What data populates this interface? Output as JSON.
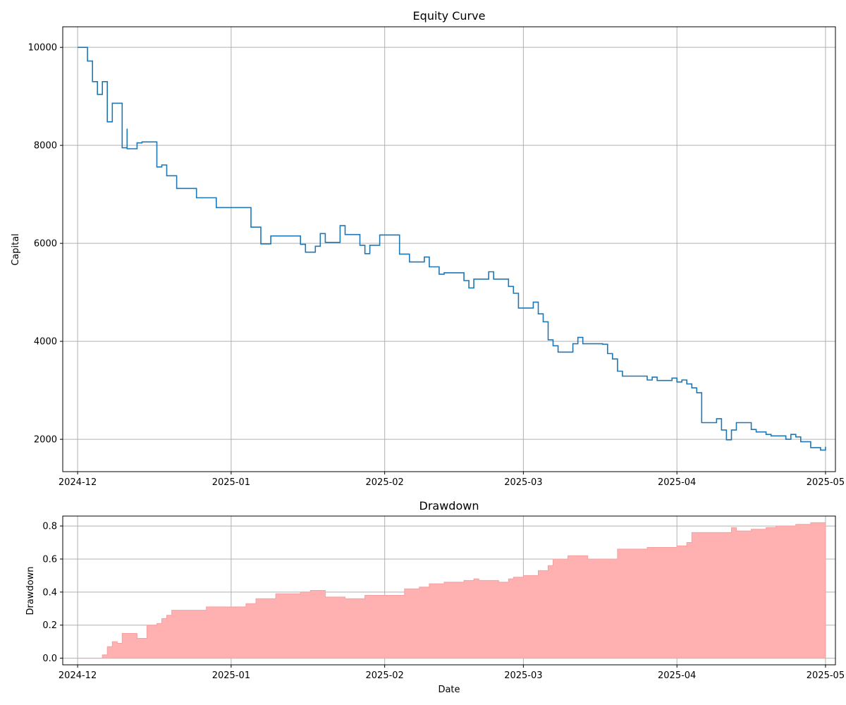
{
  "chart_data": [
    {
      "type": "line",
      "title": "Equity Curve",
      "xlabel": "",
      "ylabel": "Capital",
      "xlim": [
        "2024-11-28",
        "2025-05-03"
      ],
      "ylim": [
        1340,
        10420
      ],
      "x_ticks": [
        "2024-12",
        "2025-01",
        "2025-02",
        "2025-03",
        "2025-04",
        "2025-05"
      ],
      "y_ticks": [
        2000,
        4000,
        6000,
        8000,
        10000
      ],
      "y_tick_labels": [
        "2000",
        "4000",
        "6000",
        "8000",
        "10000"
      ],
      "grid": true,
      "step": true,
      "color": "#1f77b4",
      "series": [
        {
          "x": [
            "2024-12-01",
            "2024-12-03",
            "2024-12-04",
            "2024-12-05",
            "2024-12-06",
            "2024-12-07",
            "2024-12-07",
            "2024-12-08",
            "2024-12-08",
            "2024-12-10",
            "2024-12-10",
            "2024-12-11",
            "2024-12-11",
            "2024-12-13",
            "2024-12-13",
            "2024-12-14",
            "2024-12-17",
            "2024-12-17",
            "2024-12-18",
            "2024-12-19",
            "2024-12-20",
            "2024-12-21",
            "2024-12-23",
            "2024-12-25",
            "2024-12-29",
            "2025-01-02",
            "2025-01-05",
            "2025-01-06",
            "2025-01-07",
            "2025-01-09",
            "2025-01-15",
            "2025-01-16",
            "2025-01-18",
            "2025-01-19",
            "2025-01-20",
            "2025-01-23",
            "2025-01-24",
            "2025-01-26",
            "2025-01-27",
            "2025-01-28",
            "2025-01-29",
            "2025-01-31",
            "2025-02-02",
            "2025-02-04",
            "2025-02-05",
            "2025-02-06",
            "2025-02-09",
            "2025-02-10",
            "2025-02-11",
            "2025-02-12",
            "2025-02-13",
            "2025-02-17",
            "2025-02-18",
            "2025-02-19",
            "2025-02-20",
            "2025-02-22",
            "2025-02-23",
            "2025-02-24",
            "2025-02-26",
            "2025-02-27",
            "2025-02-28",
            "2025-03-03",
            "2025-03-04",
            "2025-03-05",
            "2025-03-06",
            "2025-03-07",
            "2025-03-08",
            "2025-03-09",
            "2025-03-11",
            "2025-03-12",
            "2025-03-13",
            "2025-03-14",
            "2025-03-17",
            "2025-03-18",
            "2025-03-19",
            "2025-03-20",
            "2025-03-21",
            "2025-03-25",
            "2025-03-26",
            "2025-03-27",
            "2025-03-28",
            "2025-03-31",
            "2025-04-01",
            "2025-04-02",
            "2025-04-03",
            "2025-04-04",
            "2025-04-05",
            "2025-04-06",
            "2025-04-08",
            "2025-04-09",
            "2025-04-10",
            "2025-04-11",
            "2025-04-12",
            "2025-04-13",
            "2025-04-14",
            "2025-04-16",
            "2025-04-17",
            "2025-04-18",
            "2025-04-19",
            "2025-04-20",
            "2025-04-23",
            "2025-04-24",
            "2025-04-25",
            "2025-04-26",
            "2025-04-28",
            "2025-04-29",
            "2025-04-30",
            "2025-05-01"
          ],
          "y": [
            10000,
            9720,
            9300,
            9040,
            9300,
            9000,
            8480,
            8480,
            8860,
            8620,
            7950,
            8340,
            7930,
            8050,
            8050,
            8070,
            7800,
            7560,
            7600,
            7380,
            7380,
            7120,
            7120,
            6930,
            6730,
            6730,
            6330,
            6330,
            5990,
            6150,
            5980,
            5820,
            5940,
            6200,
            6020,
            6360,
            6180,
            6180,
            5960,
            5790,
            5960,
            6170,
            6170,
            5780,
            5780,
            5620,
            5720,
            5520,
            5520,
            5370,
            5400,
            5240,
            5090,
            5270,
            5270,
            5420,
            5270,
            5270,
            5120,
            4980,
            4680,
            4800,
            4560,
            4400,
            4030,
            3910,
            3780,
            3780,
            3950,
            4080,
            3950,
            3950,
            3940,
            3750,
            3640,
            3390,
            3290,
            3290,
            3210,
            3270,
            3200,
            3250,
            3170,
            3210,
            3130,
            3050,
            2950,
            2340,
            2340,
            2420,
            2190,
            1990,
            2190,
            2340,
            2340,
            2200,
            2150,
            2150,
            2100,
            2070,
            2000,
            2100,
            2050,
            1950,
            1830,
            1830,
            1780,
            1850
          ]
        }
      ]
    },
    {
      "type": "area",
      "title": "Drawdown",
      "xlabel": "Date",
      "ylabel": "Drawdown",
      "xlim": [
        "2024-11-28",
        "2025-05-03"
      ],
      "ylim": [
        -0.04,
        0.86
      ],
      "x_ticks": [
        "2024-12",
        "2025-01",
        "2025-02",
        "2025-03",
        "2025-04",
        "2025-05"
      ],
      "y_ticks": [
        0,
        0.2,
        0.4,
        0.6,
        0.8
      ],
      "y_tick_labels": [
        "0.0",
        "0.2",
        "0.4",
        "0.6",
        "0.8"
      ],
      "grid": true,
      "step": true,
      "color": "#ffb1b1",
      "series": [
        {
          "x": [
            "2024-12-01",
            "2024-12-06",
            "2024-12-07",
            "2024-12-08",
            "2024-12-09",
            "2024-12-10",
            "2024-12-12",
            "2024-12-13",
            "2024-12-15",
            "2024-12-17",
            "2024-12-18",
            "2024-12-19",
            "2024-12-20",
            "2024-12-23",
            "2024-12-27",
            "2025-01-04",
            "2025-01-06",
            "2025-01-10",
            "2025-01-15",
            "2025-01-17",
            "2025-01-20",
            "2025-01-24",
            "2025-01-28",
            "2025-02-02",
            "2025-02-05",
            "2025-02-08",
            "2025-02-10",
            "2025-02-13",
            "2025-02-17",
            "2025-02-19",
            "2025-02-20",
            "2025-02-24",
            "2025-02-26",
            "2025-02-27",
            "2025-03-01",
            "2025-03-04",
            "2025-03-06",
            "2025-03-07",
            "2025-03-10",
            "2025-03-14",
            "2025-03-18",
            "2025-03-20",
            "2025-03-26",
            "2025-03-28",
            "2025-04-01",
            "2025-04-03",
            "2025-04-04",
            "2025-04-10",
            "2025-04-12",
            "2025-04-13",
            "2025-04-16",
            "2025-04-19",
            "2025-04-21",
            "2025-04-25",
            "2025-04-28",
            "2025-05-01"
          ],
          "y": [
            0.0,
            0.02,
            0.07,
            0.1,
            0.09,
            0.15,
            0.15,
            0.12,
            0.2,
            0.21,
            0.24,
            0.26,
            0.29,
            0.29,
            0.31,
            0.33,
            0.36,
            0.39,
            0.4,
            0.41,
            0.37,
            0.36,
            0.38,
            0.38,
            0.42,
            0.43,
            0.45,
            0.46,
            0.47,
            0.48,
            0.47,
            0.46,
            0.48,
            0.49,
            0.5,
            0.53,
            0.56,
            0.6,
            0.62,
            0.6,
            0.6,
            0.66,
            0.67,
            0.67,
            0.68,
            0.7,
            0.76,
            0.76,
            0.79,
            0.77,
            0.78,
            0.79,
            0.8,
            0.81,
            0.82,
            0.81
          ]
        }
      ]
    }
  ]
}
